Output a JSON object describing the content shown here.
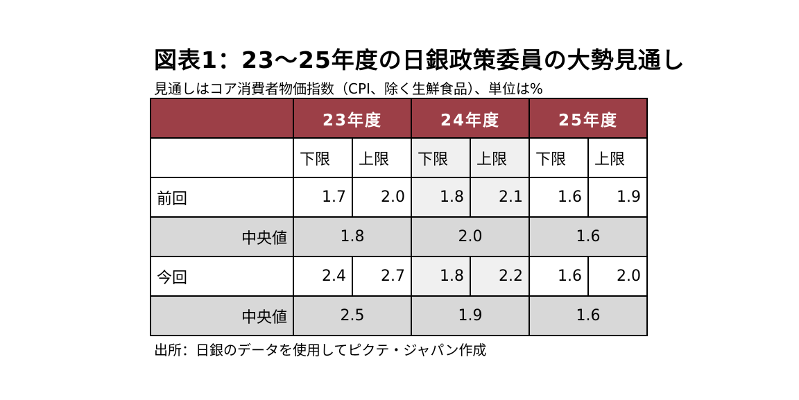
{
  "title": "図表1：23～25年度の日銀政策委員の大勢見通し",
  "subtitle": "見通しはコア消費者物価指数（CPI、除く生鮮食品）、単位は%",
  "source": "出所：日銀のデータを使用してピクテ・ジャパン作成",
  "table": {
    "years": [
      "23年度",
      "24年度",
      "25年度"
    ],
    "lower_label": "下限",
    "upper_label": "上限",
    "rows": [
      {
        "label": "前回",
        "values": [
          "1.7",
          "2.0",
          "1.8",
          "2.1",
          "1.6",
          "1.9"
        ],
        "median_label": "中央値",
        "medians": [
          "1.8",
          "2.0",
          "1.6"
        ]
      },
      {
        "label": "今回",
        "values": [
          "2.4",
          "2.7",
          "1.8",
          "2.2",
          "1.6",
          "2.0"
        ],
        "median_label": "中央値",
        "medians": [
          "2.5",
          "1.9",
          "1.6"
        ]
      }
    ]
  },
  "colors": {
    "header_bg": "#9c3f47",
    "median_bg": "#d8d8d8",
    "fy24_bg": "#f0f0f0"
  }
}
